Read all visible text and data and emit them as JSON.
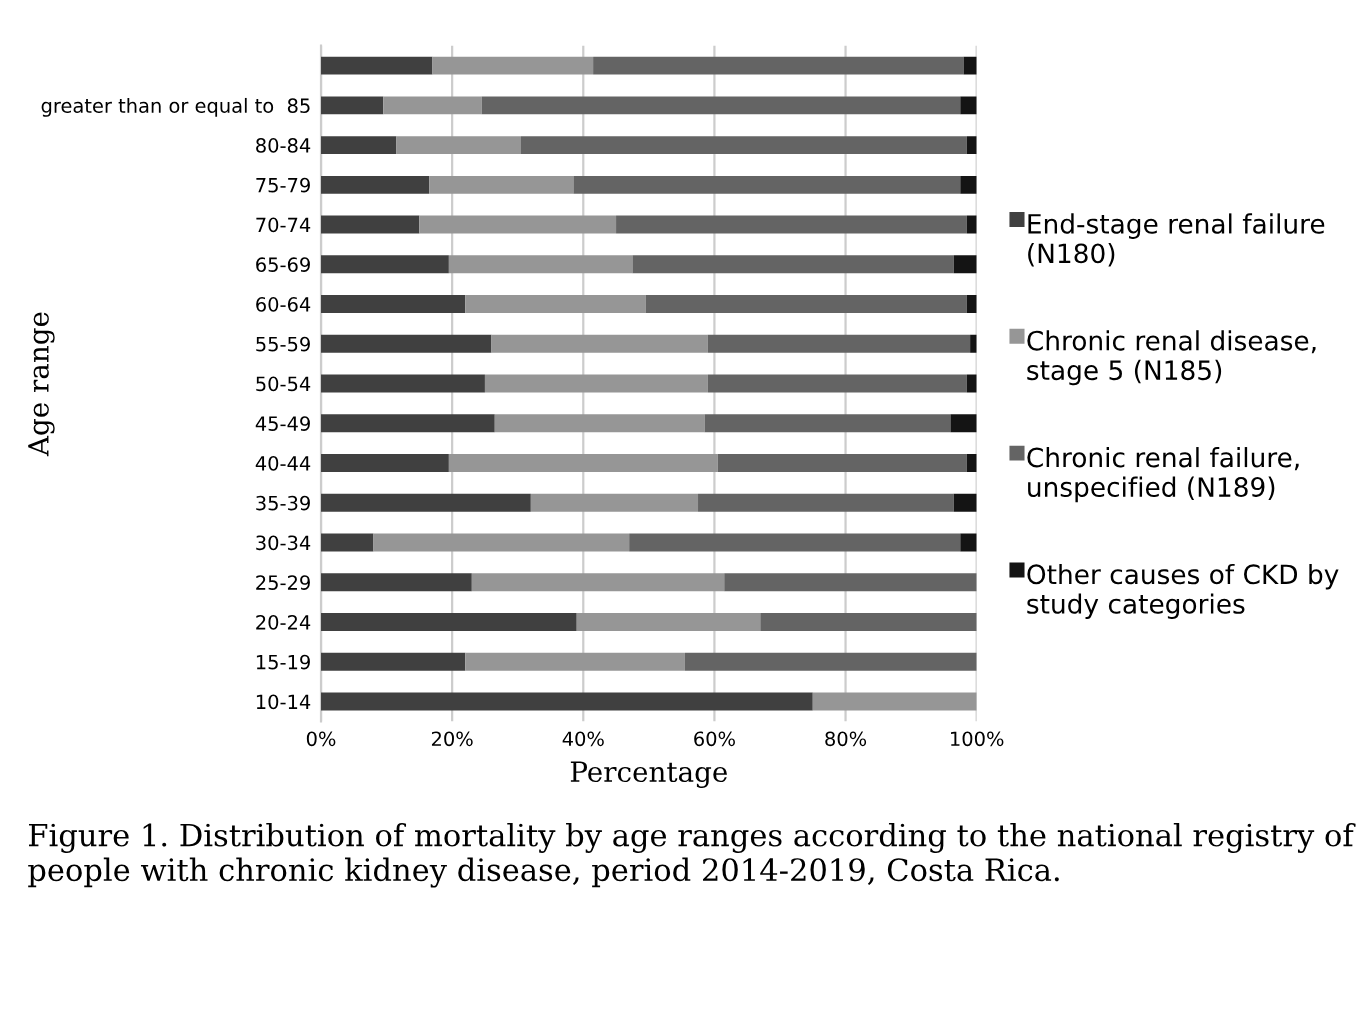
{
  "chart_data": {
    "type": "bar",
    "orientation": "horizontal",
    "stacked": true,
    "categories": [
      null,
      "greater than or equal to  85",
      "80-84",
      "75-79",
      "70-74",
      "65-69",
      "60-64",
      "55-59",
      "50-54",
      "45-49",
      "40-44",
      "35-39",
      "30-34",
      "25-29",
      "20-24",
      "15-19",
      "10-14"
    ],
    "series": [
      {
        "name": "End-stage renal failure (N180)",
        "color": "#404040",
        "values": [
          17,
          9.5,
          11.5,
          16.5,
          15,
          19.5,
          22,
          26,
          25,
          26.5,
          19.5,
          32,
          8,
          23,
          39,
          22,
          75
        ]
      },
      {
        "name": "Chronic renal disease, stage 5 (N185)",
        "color": "#969696",
        "values": [
          24.5,
          15,
          19,
          22,
          30,
          28,
          27.5,
          33,
          34,
          32,
          41,
          25.5,
          39,
          38.5,
          28,
          33.5,
          25
        ]
      },
      {
        "name": "Chronic renal failure, unspecified (N189)",
        "color": "#646464",
        "values": [
          56.5,
          73,
          68,
          59,
          53.5,
          49,
          49,
          40,
          39.5,
          37.5,
          38,
          39,
          50.5,
          38.5,
          33,
          44.5,
          0
        ]
      },
      {
        "name": "Other causes of CKD by study categories",
        "color": "#141414",
        "values": [
          2,
          2.5,
          1.5,
          2.5,
          1.5,
          3.5,
          1.5,
          1,
          1.5,
          4,
          1.5,
          3.5,
          2.5,
          0,
          0,
          0,
          0
        ]
      }
    ],
    "xlim": [
      0,
      100
    ],
    "xticks": [
      {
        "value": 0,
        "label": "0%"
      },
      {
        "value": 20,
        "label": "20%"
      },
      {
        "value": 40,
        "label": "40%"
      },
      {
        "value": 60,
        "label": "60%"
      },
      {
        "value": 80,
        "label": "80%"
      },
      {
        "value": 100,
        "label": "100%"
      }
    ],
    "xlabel": "Percentage",
    "ylabel": "Age range",
    "grid": "x",
    "legend": "right",
    "annotations": [
      "Figure 1. Distribution of mortality by age ranges according to the national registry of people with chronic kidney disease, period 2014-2019, Costa Rica."
    ]
  }
}
